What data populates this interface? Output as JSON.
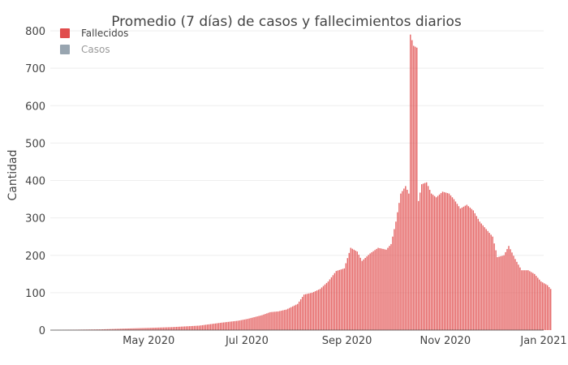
{
  "chart_data": {
    "type": "bar",
    "title": "Promedio (7 días) de casos y fallecimientos diarios",
    "xlabel": "",
    "ylabel": "Cantidad",
    "ylim": [
      0,
      800
    ],
    "xlim": [
      "2020-03-01",
      "2021-01-01"
    ],
    "grid": true,
    "legend_placement": "top-left",
    "y_ticks": [
      0,
      100,
      200,
      300,
      400,
      500,
      600,
      700,
      800
    ],
    "x_ticks": [
      {
        "date": "2020-05-01",
        "label": "May 2020"
      },
      {
        "date": "2020-07-01",
        "label": "Jul 2020"
      },
      {
        "date": "2020-09-01",
        "label": "Sep 2020"
      },
      {
        "date": "2020-11-01",
        "label": "Nov 2020"
      },
      {
        "date": "2021-01-01",
        "label": "Jan 2021"
      }
    ],
    "legend": [
      {
        "name": "Fallecidos",
        "color": "#e04c4c",
        "active": true
      },
      {
        "name": "Casos",
        "color": "#98a5b0",
        "active": false
      }
    ],
    "series": [
      {
        "name": "Fallecidos",
        "color": "#e04c4c",
        "points": [
          [
            "2020-03-01",
            0
          ],
          [
            "2020-03-15",
            1
          ],
          [
            "2020-04-01",
            2
          ],
          [
            "2020-04-15",
            4
          ],
          [
            "2020-05-01",
            6
          ],
          [
            "2020-05-15",
            8
          ],
          [
            "2020-06-01",
            12
          ],
          [
            "2020-06-15",
            20
          ],
          [
            "2020-06-25",
            25
          ],
          [
            "2020-07-01",
            30
          ],
          [
            "2020-07-10",
            40
          ],
          [
            "2020-07-15",
            48
          ],
          [
            "2020-07-20",
            50
          ],
          [
            "2020-07-25",
            55
          ],
          [
            "2020-08-01",
            70
          ],
          [
            "2020-08-05",
            95
          ],
          [
            "2020-08-10",
            100
          ],
          [
            "2020-08-15",
            110
          ],
          [
            "2020-08-20",
            130
          ],
          [
            "2020-08-25",
            158
          ],
          [
            "2020-08-30",
            165
          ],
          [
            "2020-09-03",
            220
          ],
          [
            "2020-09-07",
            210
          ],
          [
            "2020-09-10",
            185
          ],
          [
            "2020-09-15",
            205
          ],
          [
            "2020-09-20",
            220
          ],
          [
            "2020-09-25",
            215
          ],
          [
            "2020-09-28",
            230
          ],
          [
            "2020-10-01",
            290
          ],
          [
            "2020-10-04",
            365
          ],
          [
            "2020-10-07",
            385
          ],
          [
            "2020-10-09",
            365
          ],
          [
            "2020-10-10",
            790
          ],
          [
            "2020-10-12",
            760
          ],
          [
            "2020-10-14",
            755
          ],
          [
            "2020-10-15",
            345
          ],
          [
            "2020-10-17",
            390
          ],
          [
            "2020-10-20",
            395
          ],
          [
            "2020-10-23",
            365
          ],
          [
            "2020-10-26",
            355
          ],
          [
            "2020-10-30",
            370
          ],
          [
            "2020-11-03",
            365
          ],
          [
            "2020-11-06",
            350
          ],
          [
            "2020-11-10",
            325
          ],
          [
            "2020-11-14",
            335
          ],
          [
            "2020-11-18",
            320
          ],
          [
            "2020-11-22",
            290
          ],
          [
            "2020-11-26",
            270
          ],
          [
            "2020-11-30",
            250
          ],
          [
            "2020-12-03",
            195
          ],
          [
            "2020-12-07",
            200
          ],
          [
            "2020-12-10",
            225
          ],
          [
            "2020-12-14",
            190
          ],
          [
            "2020-12-18",
            160
          ],
          [
            "2020-12-22",
            160
          ],
          [
            "2020-12-26",
            150
          ],
          [
            "2020-12-30",
            130
          ],
          [
            "2021-01-03",
            120
          ],
          [
            "2021-01-05",
            110
          ]
        ]
      }
    ]
  }
}
